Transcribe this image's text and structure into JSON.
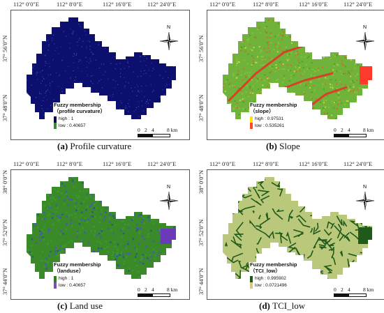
{
  "panels": [
    {
      "id": "a",
      "caption_letter": "(a)",
      "caption_text": "Profile curvature",
      "legend_title_1": "Fuzzy membership",
      "legend_title_2": "（profile curvature）",
      "high_label": "high : 1",
      "low_label": "low : 0.40657",
      "colors": {
        "base": "#0c0f6e",
        "high": "#0a0c5a",
        "low": "#1a7a2a",
        "swatch_top": "#0a0c5a",
        "swatch_bottom": "#3a8a3a"
      }
    },
    {
      "id": "b",
      "caption_letter": "(b)",
      "caption_text": "Slope",
      "legend_title_1": "Fuzzy membership",
      "legend_title_2": "（slope）",
      "high_label": "high : 0.97531",
      "low_label": "low : 0.535261",
      "colors": {
        "base": "#6fb33a",
        "high": "#ff3a2a",
        "low": "#4fa02a",
        "swatch_top": "#ffe000",
        "swatch_bottom": "#ff4a2a"
      }
    },
    {
      "id": "c",
      "caption_letter": "(c)",
      "caption_text": "Land use",
      "legend_title_1": "Fuzzy membership",
      "legend_title_2": "（landuse）",
      "high_label": "high : 1",
      "low_label": "low : 0.40657",
      "colors": {
        "base": "#3a8a2a",
        "high": "#6a3ab8",
        "low": "#2f7f1f",
        "swatch_top": "#2f7f1f",
        "swatch_bottom": "#7a4ac8"
      }
    },
    {
      "id": "d",
      "caption_letter": "(d)",
      "caption_text": "TCI_low",
      "legend_title_1": "Fuzzy membership",
      "legend_title_2": "（TCI_low）",
      "high_label": "high : 0.995902",
      "low_label": "low : 0.0721496",
      "colors": {
        "base": "#b9c87a",
        "high": "#1f5a1a",
        "low": "#d8d89a",
        "swatch_top": "#1f5a1a",
        "swatch_bottom": "#d8c87a"
      }
    }
  ],
  "top_lon_labels": [
    "112° 0′0″E",
    "112° 8′0″E",
    "112° 16′0″E",
    "112° 24′0″E"
  ],
  "lat_labels_top": [
    "37° 56′0″N",
    "37° 48′0″N"
  ],
  "lat_labels_bottom": [
    "38° 0′0″N",
    "37° 52′0″N",
    "37° 44′0″N"
  ],
  "scale": {
    "ticks": [
      "0",
      "2",
      "4",
      "8 km"
    ]
  },
  "north_letter": "N"
}
